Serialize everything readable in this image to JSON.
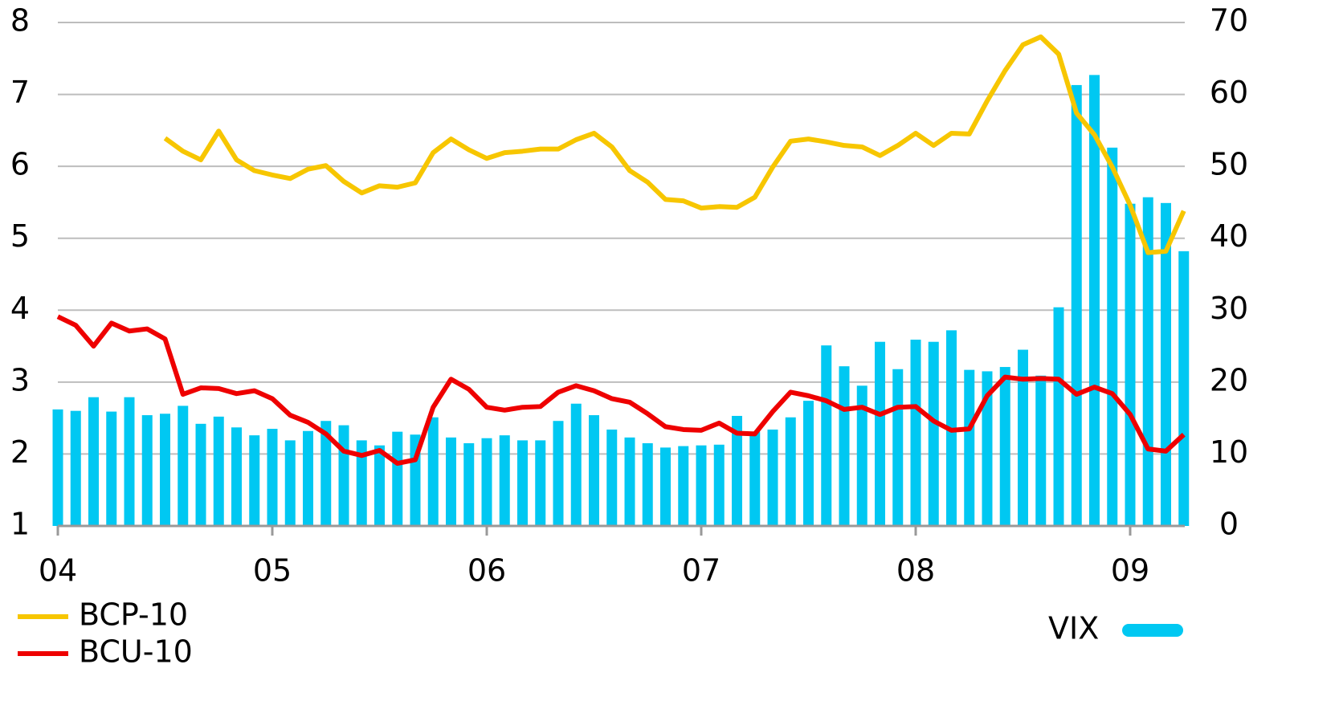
{
  "chart_data": {
    "type": "combo",
    "categories": [
      "04",
      null,
      null,
      null,
      null,
      null,
      null,
      null,
      null,
      null,
      null,
      null,
      "05",
      null,
      null,
      null,
      null,
      null,
      null,
      null,
      null,
      null,
      null,
      null,
      "06",
      null,
      null,
      null,
      null,
      null,
      null,
      null,
      null,
      null,
      null,
      null,
      "07",
      null,
      null,
      null,
      null,
      null,
      null,
      null,
      null,
      null,
      null,
      null,
      "08",
      null,
      null,
      null,
      null,
      null,
      null,
      null,
      null,
      null,
      null,
      null,
      "09",
      null,
      null,
      null
    ],
    "ylim": [
      1,
      8
    ],
    "yticks": [
      1,
      2,
      3,
      4,
      5,
      6,
      7,
      8
    ],
    "y2lim": [
      0,
      70
    ],
    "y2ticks": [
      0,
      10,
      20,
      30,
      40,
      50,
      60,
      70
    ],
    "grid": true,
    "series": [
      {
        "name": "VIX",
        "type": "bar",
        "axis": "y2",
        "color": "#00c8f2",
        "values": [
          16.2,
          16.0,
          17.9,
          15.9,
          17.9,
          15.4,
          15.6,
          16.7,
          14.2,
          15.2,
          13.7,
          12.6,
          13.5,
          11.9,
          13.2,
          14.6,
          14.0,
          11.9,
          11.2,
          13.1,
          12.7,
          15.1,
          12.3,
          11.5,
          12.2,
          12.6,
          11.9,
          11.9,
          14.6,
          17.0,
          15.4,
          13.4,
          12.3,
          11.5,
          10.9,
          11.1,
          11.2,
          11.3,
          15.3,
          13.1,
          13.4,
          15.1,
          17.4,
          25.1,
          22.2,
          19.5,
          25.6,
          21.8,
          25.9,
          25.6,
          27.2,
          21.7,
          21.5,
          22.1,
          24.5,
          20.9,
          30.4,
          61.3,
          62.7,
          52.6,
          44.8,
          45.7,
          44.9,
          38.2
        ]
      },
      {
        "name": "BCP-10",
        "type": "line",
        "color": "#f7c600",
        "values": [
          null,
          null,
          null,
          null,
          null,
          null,
          6.39,
          6.21,
          6.09,
          6.49,
          6.09,
          5.94,
          5.88,
          5.83,
          5.96,
          6.01,
          5.79,
          5.63,
          5.73,
          5.71,
          5.77,
          6.19,
          6.38,
          6.23,
          6.11,
          6.19,
          6.21,
          6.24,
          6.24,
          6.37,
          6.46,
          6.27,
          5.94,
          5.78,
          5.54,
          5.52,
          5.42,
          5.44,
          5.43,
          5.57,
          5.99,
          6.35,
          6.38,
          6.34,
          6.29,
          6.27,
          6.15,
          6.29,
          6.46,
          6.29,
          6.46,
          6.45,
          6.91,
          7.33,
          7.69,
          7.8,
          7.56,
          6.74,
          6.44,
          5.99,
          5.46,
          4.8,
          4.82,
          5.38
        ]
      },
      {
        "name": "BCU-10",
        "type": "line",
        "color": "#ee0000",
        "values": [
          3.91,
          3.79,
          3.5,
          3.82,
          3.71,
          3.74,
          3.6,
          2.83,
          2.92,
          2.91,
          2.84,
          2.88,
          2.77,
          2.54,
          2.44,
          2.28,
          2.04,
          1.98,
          2.05,
          1.87,
          1.92,
          2.65,
          3.04,
          2.9,
          2.65,
          2.61,
          2.65,
          2.66,
          2.86,
          2.95,
          2.88,
          2.77,
          2.72,
          2.56,
          2.38,
          2.34,
          2.33,
          2.43,
          2.29,
          2.28,
          2.59,
          2.86,
          2.81,
          2.74,
          2.62,
          2.65,
          2.55,
          2.65,
          2.66,
          2.46,
          2.33,
          2.35,
          2.81,
          3.07,
          3.04,
          3.05,
          3.04,
          2.83,
          2.93,
          2.84,
          2.55,
          2.07,
          2.04,
          2.27
        ]
      }
    ]
  }
}
